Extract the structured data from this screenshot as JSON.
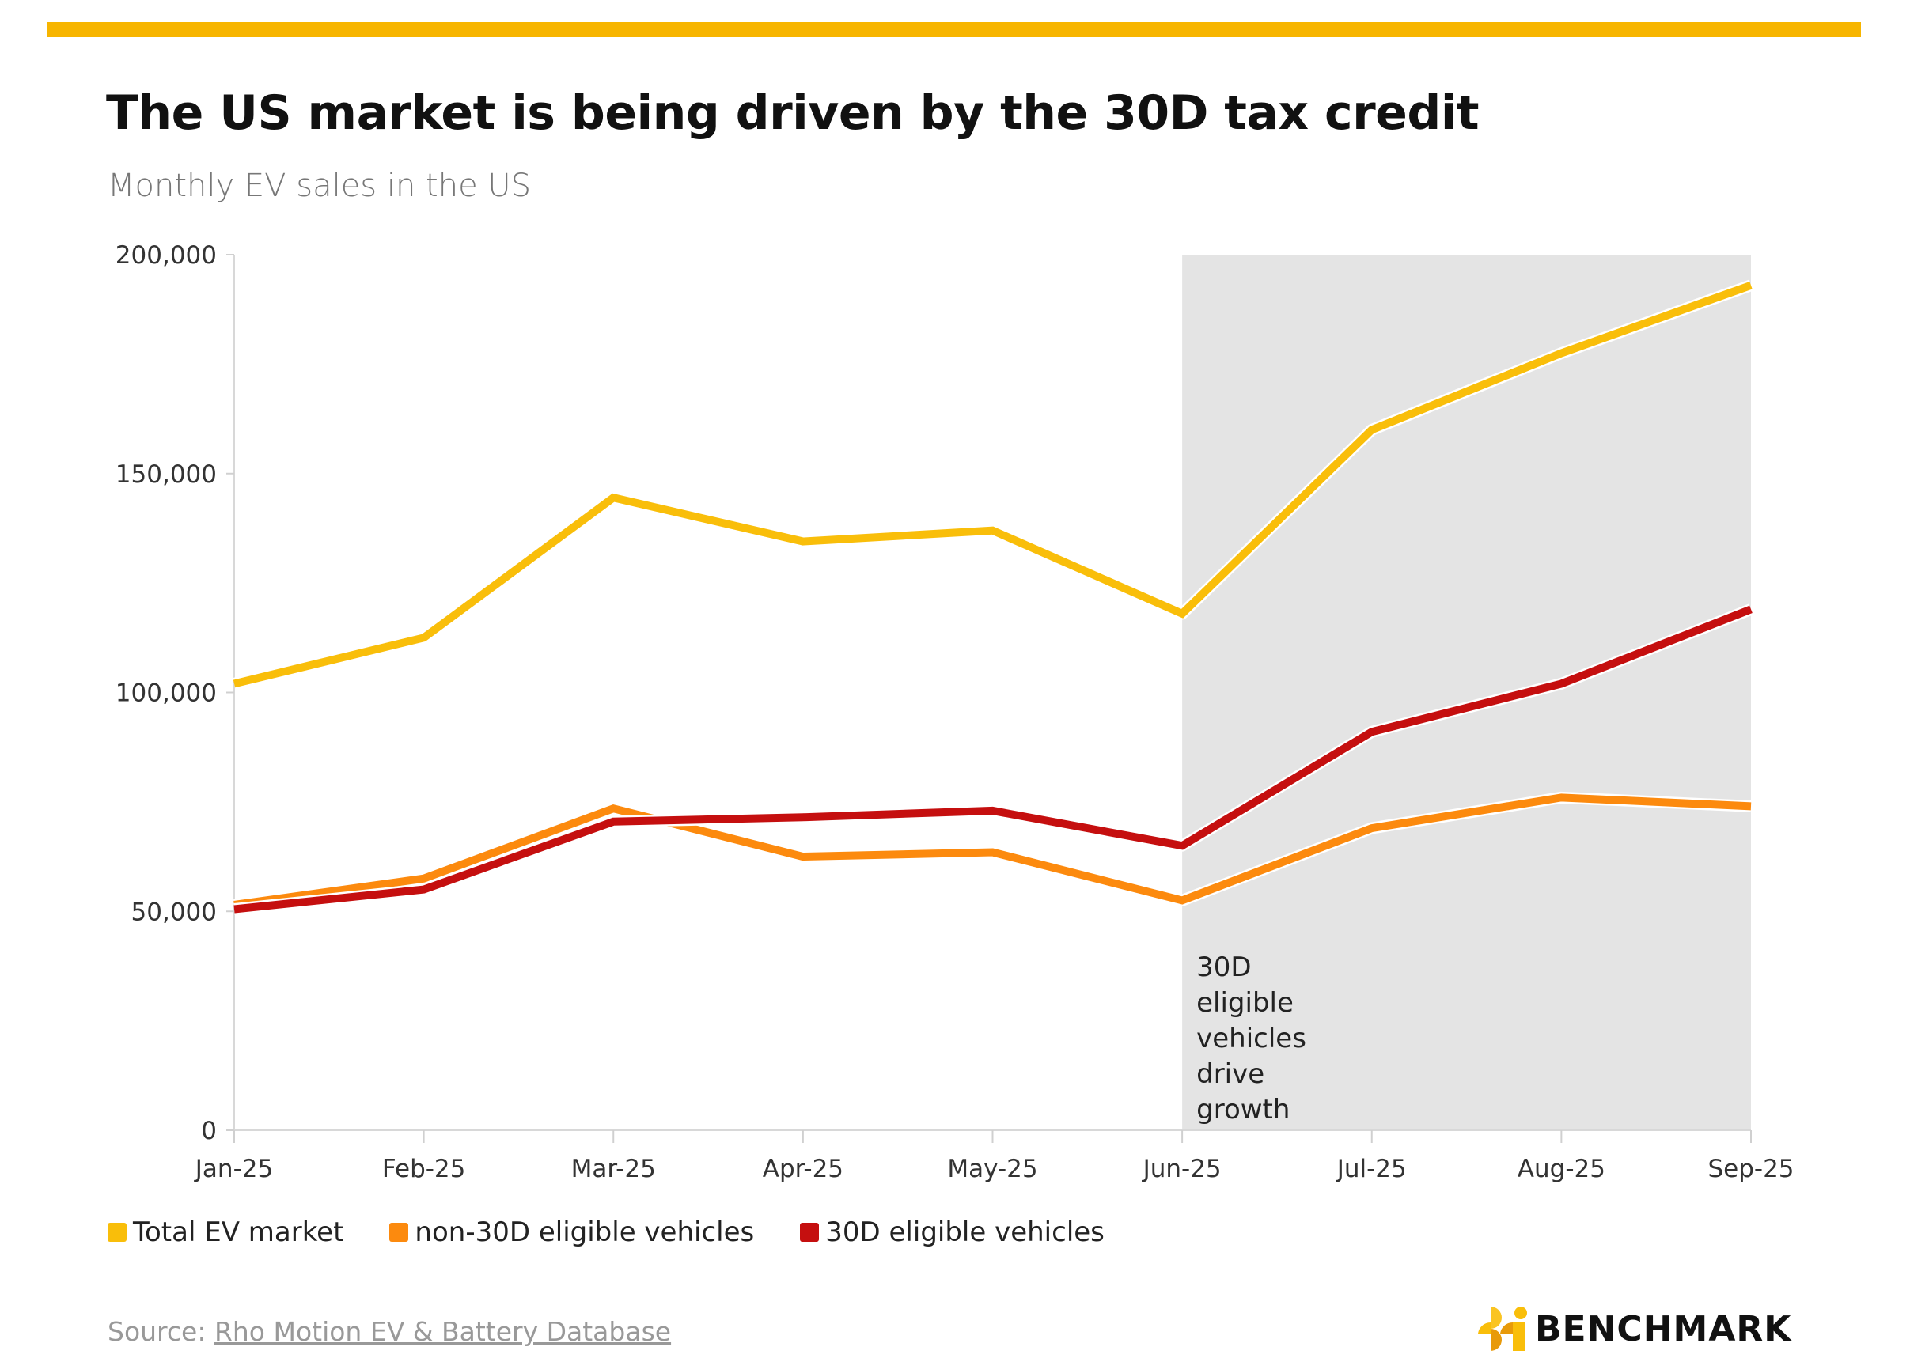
{
  "title": "The US market is being driven by the 30D tax credit",
  "subtitle": "Monthly EV sales in the US",
  "colors": {
    "accent_bar": "#F7B500",
    "total": "#F9BE0A",
    "non30d": "#FC8A0E",
    "d30": "#C50F0F",
    "shade": "#E4E4E4"
  },
  "chart_data": {
    "type": "line",
    "title": "The US market is being driven by the 30D tax credit",
    "subtitle": "Monthly EV sales in the US",
    "categories": [
      "Jan-25",
      "Feb-25",
      "Mar-25",
      "Apr-25",
      "May-25",
      "Jun-25",
      "Jul-25",
      "Aug-25",
      "Sep-25"
    ],
    "ylim": [
      0,
      200000
    ],
    "yticks": [
      0,
      50000,
      100000,
      150000,
      200000
    ],
    "ytick_labels": [
      "0",
      "50,000",
      "100,000",
      "150,000",
      "200,000"
    ],
    "grid": false,
    "legend_placement": "bottom-left",
    "series": [
      {
        "name": "Total EV market",
        "color": "#F9BE0A",
        "values": [
          102000,
          112500,
          144500,
          134500,
          137000,
          118000,
          160000,
          177500,
          193000
        ]
      },
      {
        "name": "non-30D eligible vehicles",
        "color": "#FC8A0E",
        "values": [
          51500,
          57500,
          73500,
          62500,
          63500,
          52500,
          69000,
          76000,
          74000
        ]
      },
      {
        "name": "30D eligible vehicles",
        "color": "#C50F0F",
        "values": [
          50500,
          55000,
          70500,
          71500,
          73000,
          65000,
          91000,
          102000,
          119000
        ]
      }
    ],
    "shaded_region": {
      "from": "Jun-25",
      "to": "Sep-25",
      "annotation": [
        "30D",
        "eligible",
        "vehicles",
        "drive",
        "growth"
      ]
    }
  },
  "source": {
    "prefix": "Source: ",
    "link_text": "Rho Motion EV & Battery Database"
  },
  "logo": {
    "text": "BENCHMARK"
  }
}
